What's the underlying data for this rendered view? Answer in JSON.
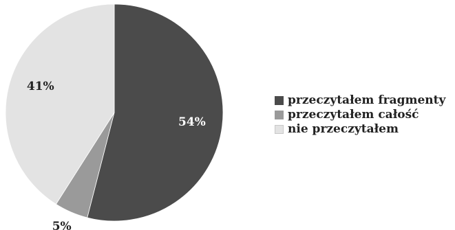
{
  "chart_data": {
    "type": "pie",
    "title": "",
    "categories": [
      "przeczytałem fragmenty",
      "przeczytałem całość",
      "nie przeczytałem"
    ],
    "values": [
      54,
      5,
      41
    ],
    "labels": [
      "54%",
      "5%",
      "41%"
    ],
    "colors": [
      "#4b4b4b",
      "#9a9a9a",
      "#e3e3e3"
    ],
    "start_angle_deg": 0,
    "direction": "clockwise",
    "legend_position": "right"
  }
}
